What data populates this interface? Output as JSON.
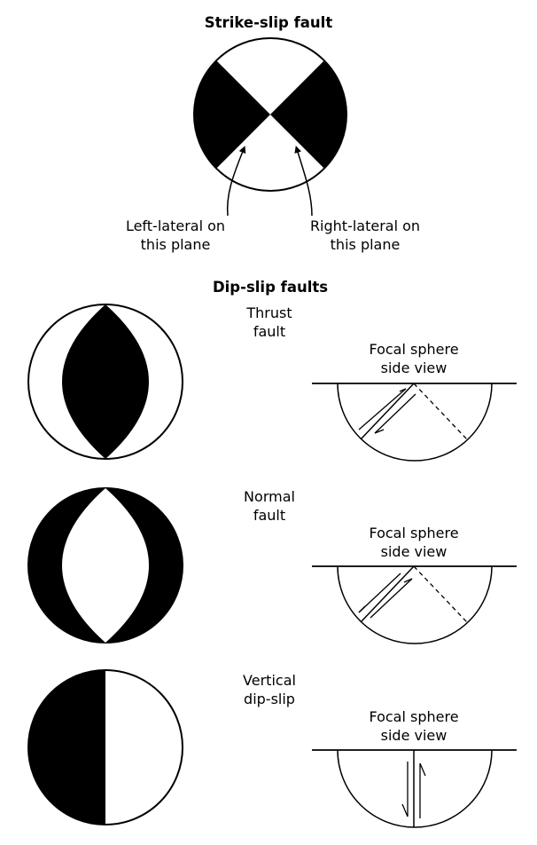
{
  "strike_slip": {
    "title": "Strike-slip fault",
    "left_label_line1": "Left-lateral on",
    "left_label_line2": "this plane",
    "right_label_line1": "Right-lateral on",
    "right_label_line2": "this plane"
  },
  "dip_slip": {
    "title": "Dip-slip faults",
    "thrust_line1": "Thrust",
    "thrust_line2": "fault",
    "normal_line1": "Normal",
    "normal_line2": "fault",
    "vertical_line1": "Vertical",
    "vertical_line2": "dip-slip",
    "side_view_line1": "Focal sphere",
    "side_view_line2": "side view"
  },
  "colors": {
    "ink": "#000000",
    "paper": "#ffffff"
  }
}
